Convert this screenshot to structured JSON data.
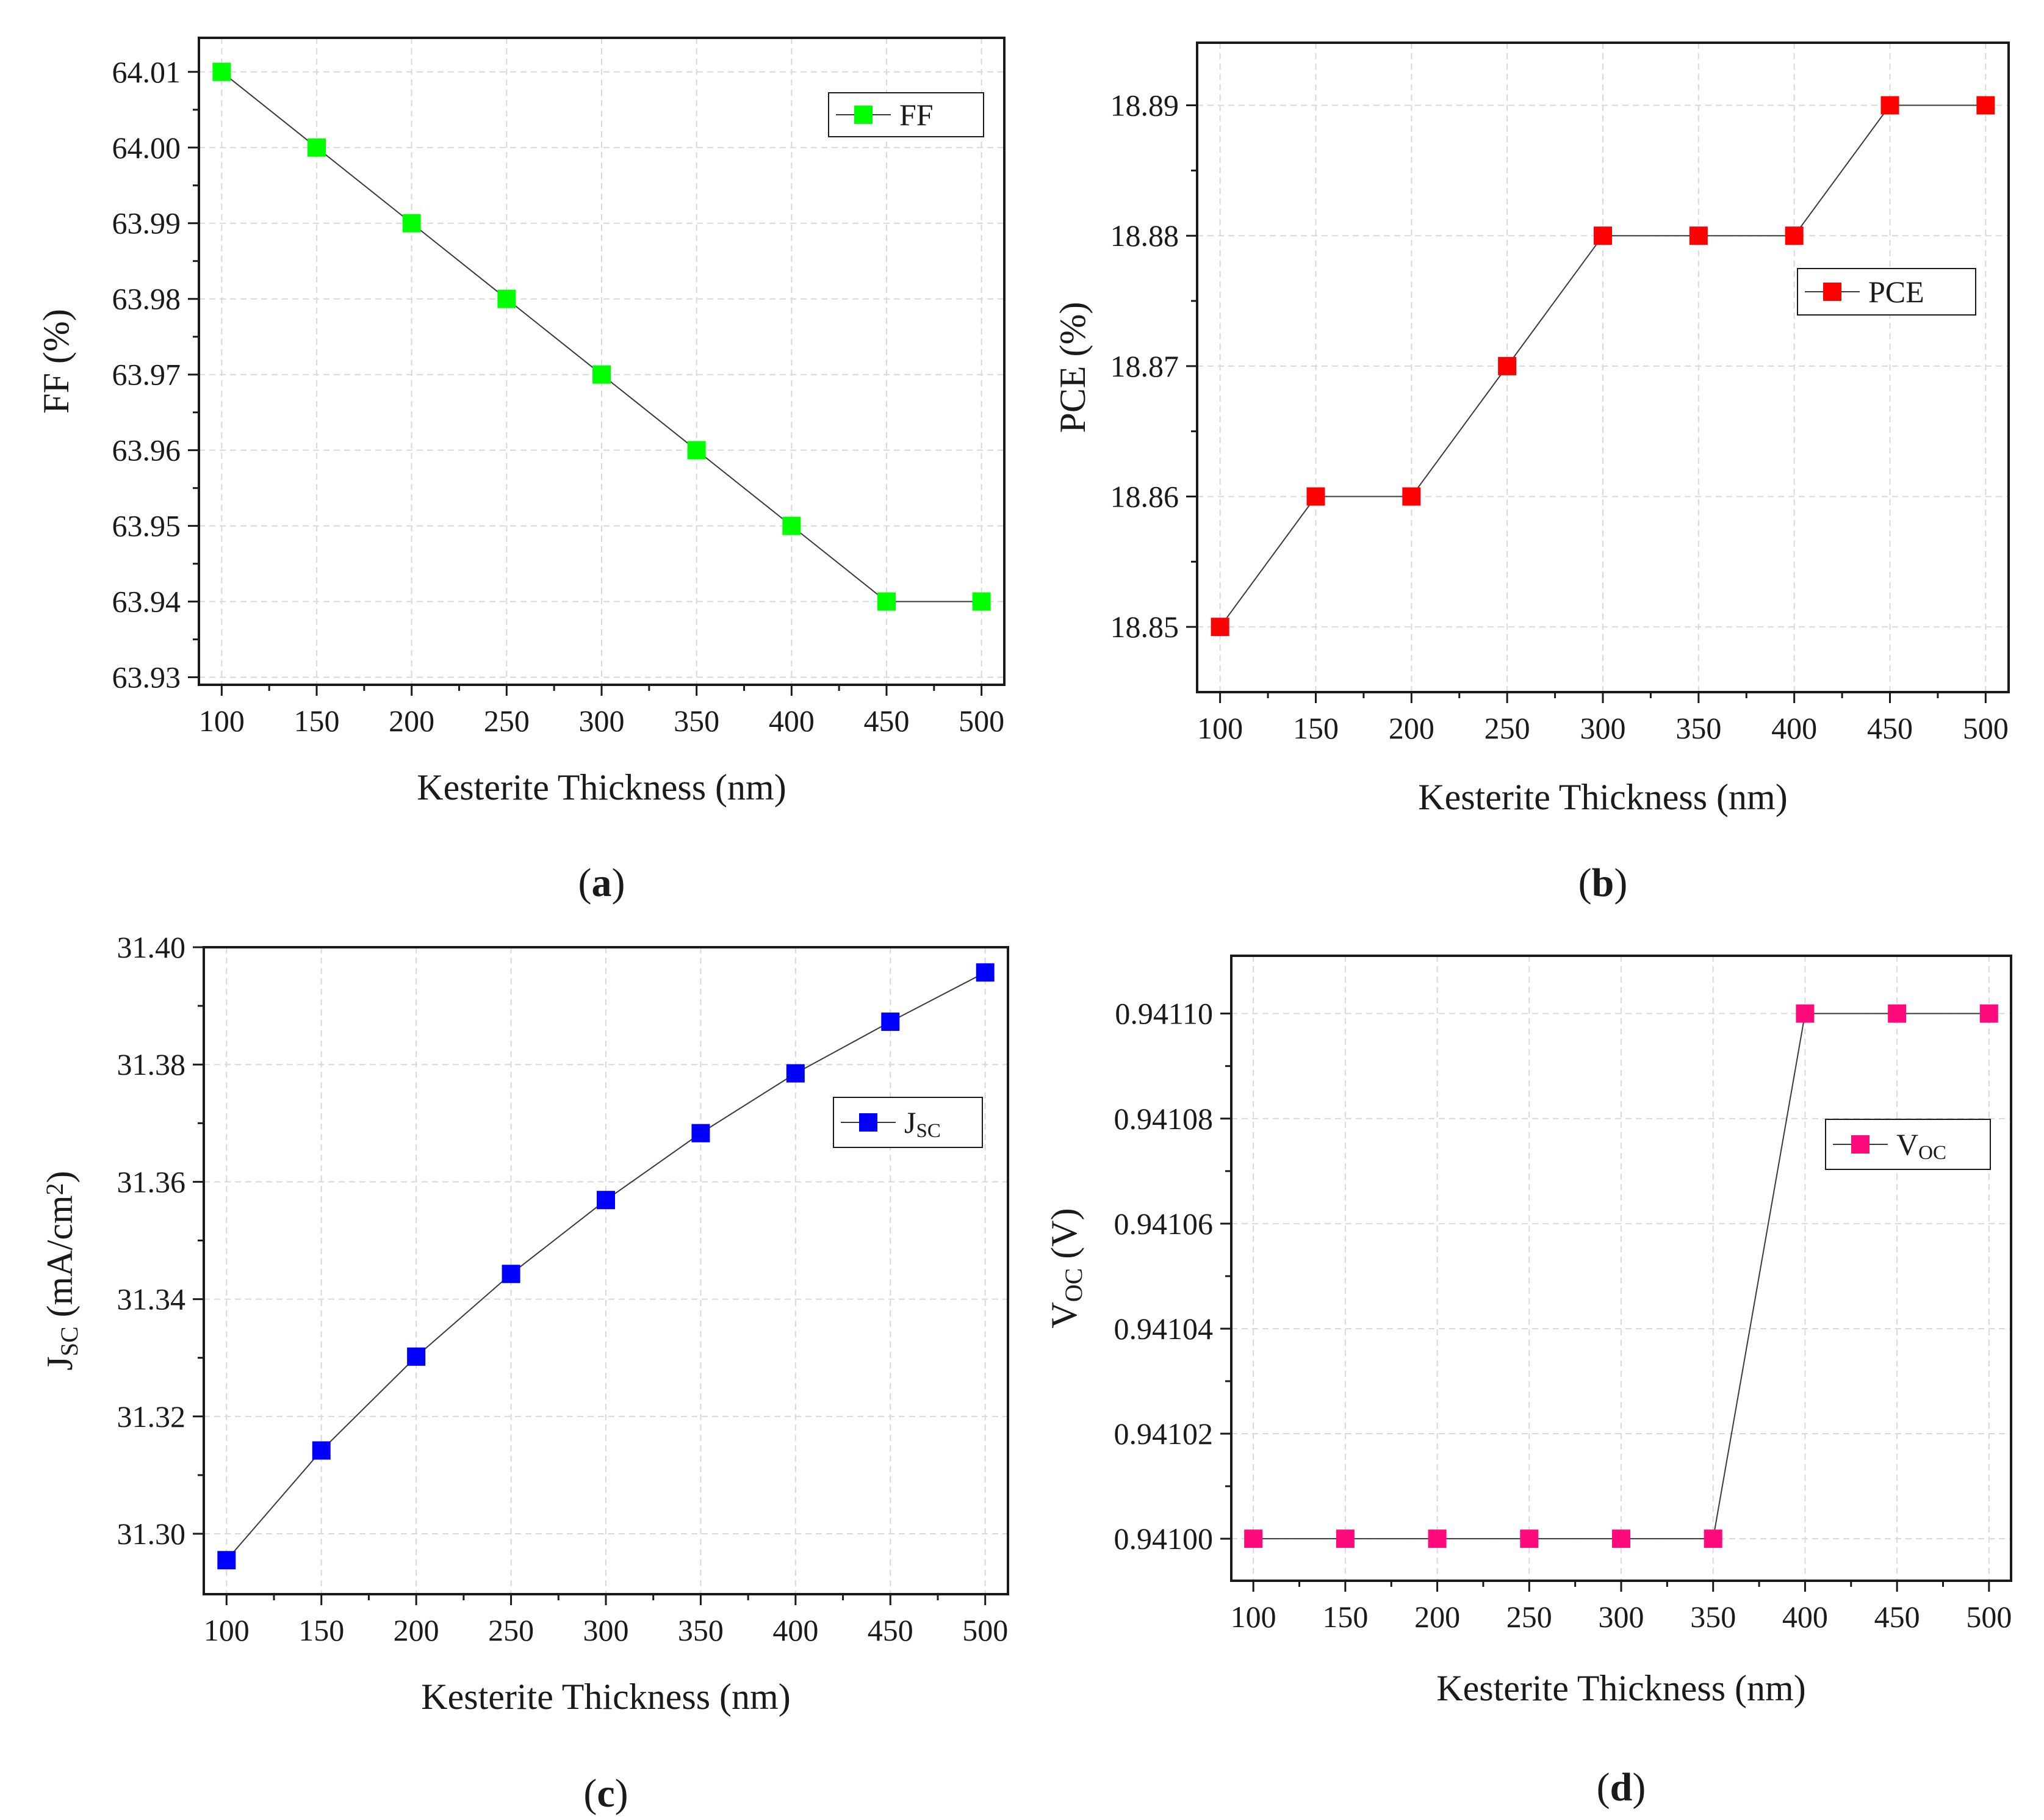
{
  "chart_data": [
    {
      "id": "a",
      "type": "line",
      "panel_label": "a",
      "title": "",
      "xlabel": "Kesterite Thickness (nm)",
      "ylabel": "FF (%)",
      "ylabel_parts": [
        {
          "t": "FF (%)"
        }
      ],
      "x": [
        100,
        150,
        200,
        250,
        300,
        350,
        400,
        450,
        500
      ],
      "xticks": [
        100,
        150,
        200,
        250,
        300,
        350,
        400,
        450,
        500
      ],
      "xlim": [
        88,
        512
      ],
      "yticks": [
        "63.93",
        "63.94",
        "63.95",
        "63.96",
        "63.97",
        "63.98",
        "63.99",
        "64.00",
        "64.01"
      ],
      "ylim": [
        63.929,
        64.0145
      ],
      "series": [
        {
          "name": "FF",
          "legend_parts": [
            {
              "t": "FF"
            }
          ],
          "color": "#00ff00",
          "marker": "square",
          "values": [
            64.01,
            64.0,
            63.99,
            63.98,
            63.97,
            63.96,
            63.95,
            63.94,
            63.94
          ]
        }
      ],
      "legend": "top-right",
      "grid": true
    },
    {
      "id": "b",
      "type": "line",
      "panel_label": "b",
      "title": "",
      "xlabel": "Kesterite Thickness (nm)",
      "ylabel": "PCE (%)",
      "ylabel_parts": [
        {
          "t": "PCE (%)"
        }
      ],
      "x": [
        100,
        150,
        200,
        250,
        300,
        350,
        400,
        450,
        500
      ],
      "xticks": [
        100,
        150,
        200,
        250,
        300,
        350,
        400,
        450,
        500
      ],
      "xlim": [
        88,
        512
      ],
      "yticks": [
        "18.85",
        "18.86",
        "18.87",
        "18.88",
        "18.89"
      ],
      "ylim": [
        18.845,
        18.8948
      ],
      "series": [
        {
          "name": "PCE",
          "legend_parts": [
            {
              "t": "PCE"
            }
          ],
          "color": "#ff0000",
          "marker": "square",
          "values": [
            18.85,
            18.86,
            18.86,
            18.87,
            18.88,
            18.88,
            18.88,
            18.89,
            18.89
          ]
        }
      ],
      "legend": "center-right",
      "grid": true
    },
    {
      "id": "c",
      "type": "line",
      "panel_label": "c",
      "title": "",
      "xlabel": "Kesterite Thickness (nm)",
      "ylabel": "JSC (mA/cm2)",
      "ylabel_parts": [
        {
          "t": "J"
        },
        {
          "t": "SC",
          "sub": true
        },
        {
          "t": " (mA/cm"
        },
        {
          "t": "2",
          "sup": true
        },
        {
          "t": ")"
        }
      ],
      "x": [
        100,
        150,
        200,
        250,
        300,
        350,
        400,
        450,
        500
      ],
      "xticks": [
        100,
        150,
        200,
        250,
        300,
        350,
        400,
        450,
        500
      ],
      "xlim": [
        88,
        512
      ],
      "yticks": [
        "31.30",
        "31.32",
        "31.34",
        "31.36",
        "31.38",
        "31.40"
      ],
      "ylim": [
        31.2897,
        31.4
      ],
      "series": [
        {
          "name": "JSC",
          "legend_parts": [
            {
              "t": "J"
            },
            {
              "t": "SC",
              "sub": true
            }
          ],
          "color": "#0000ff",
          "marker": "square",
          "values": [
            31.2955,
            31.3142,
            31.3302,
            31.3443,
            31.3569,
            31.3683,
            31.3785,
            31.3873,
            31.3957
          ]
        }
      ],
      "legend": "center-right",
      "grid": true
    },
    {
      "id": "d",
      "type": "line",
      "panel_label": "d",
      "title": "",
      "xlabel": "Kesterite Thickness (nm)",
      "ylabel": "VOC (V)",
      "ylabel_parts": [
        {
          "t": "V"
        },
        {
          "t": "OC",
          "sub": true
        },
        {
          "t": " (V)"
        }
      ],
      "x": [
        100,
        150,
        200,
        250,
        300,
        350,
        400,
        450,
        500
      ],
      "xticks": [
        100,
        150,
        200,
        250,
        300,
        350,
        400,
        450,
        500
      ],
      "xlim": [
        88,
        512
      ],
      "yticks": [
        "0.94100",
        "0.94102",
        "0.94104",
        "0.94106",
        "0.94108",
        "0.94110"
      ],
      "ylim": [
        0.940992,
        0.941111
      ],
      "series": [
        {
          "name": "VOC",
          "legend_parts": [
            {
              "t": "V"
            },
            {
              "t": "OC",
              "sub": true
            }
          ],
          "color": "#ff0a7d",
          "marker": "square",
          "values": [
            0.941,
            0.941,
            0.941,
            0.941,
            0.941,
            0.941,
            0.9411,
            0.9411,
            0.9411
          ]
        }
      ],
      "legend": "center-right",
      "grid": true
    }
  ]
}
